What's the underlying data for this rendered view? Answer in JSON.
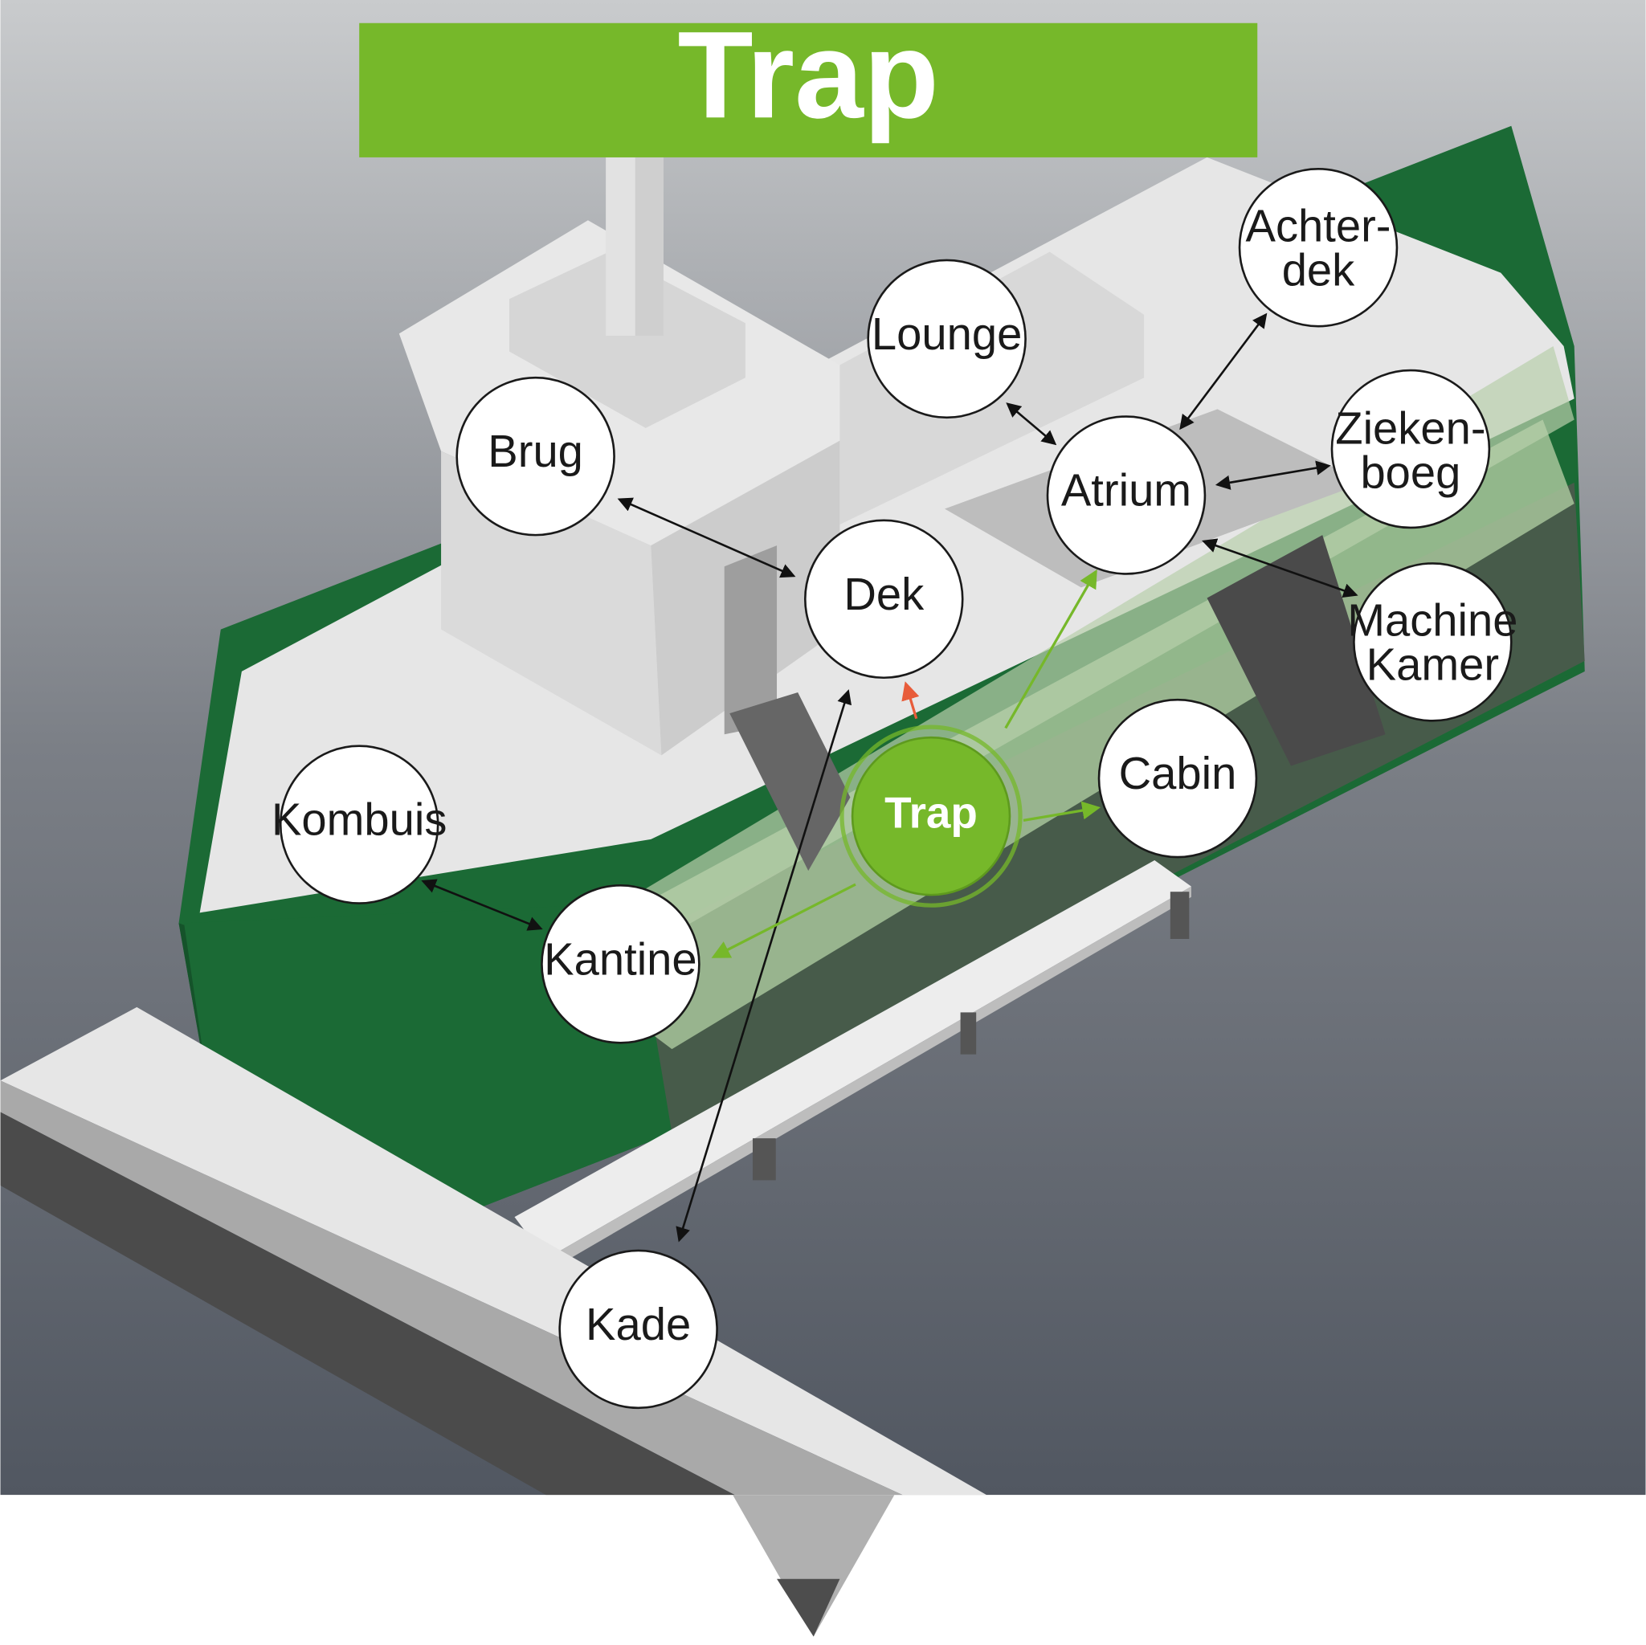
{
  "title": "Trap",
  "colors": {
    "title_bar": "#76b82a",
    "active_node": "#76b82a",
    "hull_green": "#186232",
    "forward_arrow": "#e85c3a"
  },
  "active_node": {
    "label": "Trap"
  },
  "nodes": {
    "brug": "Brug",
    "lounge": "Lounge",
    "achterdek_1": "Achter-",
    "achterdek_2": "dek",
    "atrium": "Atrium",
    "ziekenboeg_1": "Zieken-",
    "ziekenboeg_2": "boeg",
    "dek": "Dek",
    "machine_kamer_1": "Machine",
    "machine_kamer_2": "Kamer",
    "cabin": "Cabin",
    "kombuis": "Kombuis",
    "kantine": "Kantine",
    "kade": "Kade"
  },
  "connections": [
    [
      "Brug",
      "Dek"
    ],
    [
      "Lounge",
      "Atrium"
    ],
    [
      "Atrium",
      "Achterdek"
    ],
    [
      "Atrium",
      "Ziekenboeg"
    ],
    [
      "Atrium",
      "Machine Kamer"
    ],
    [
      "Kombuis",
      "Kantine"
    ],
    [
      "Dek",
      "Kade"
    ],
    [
      "Trap",
      "Atrium"
    ],
    [
      "Trap",
      "Cabin"
    ],
    [
      "Trap",
      "Kantine"
    ],
    [
      "Trap",
      "Dek"
    ]
  ]
}
